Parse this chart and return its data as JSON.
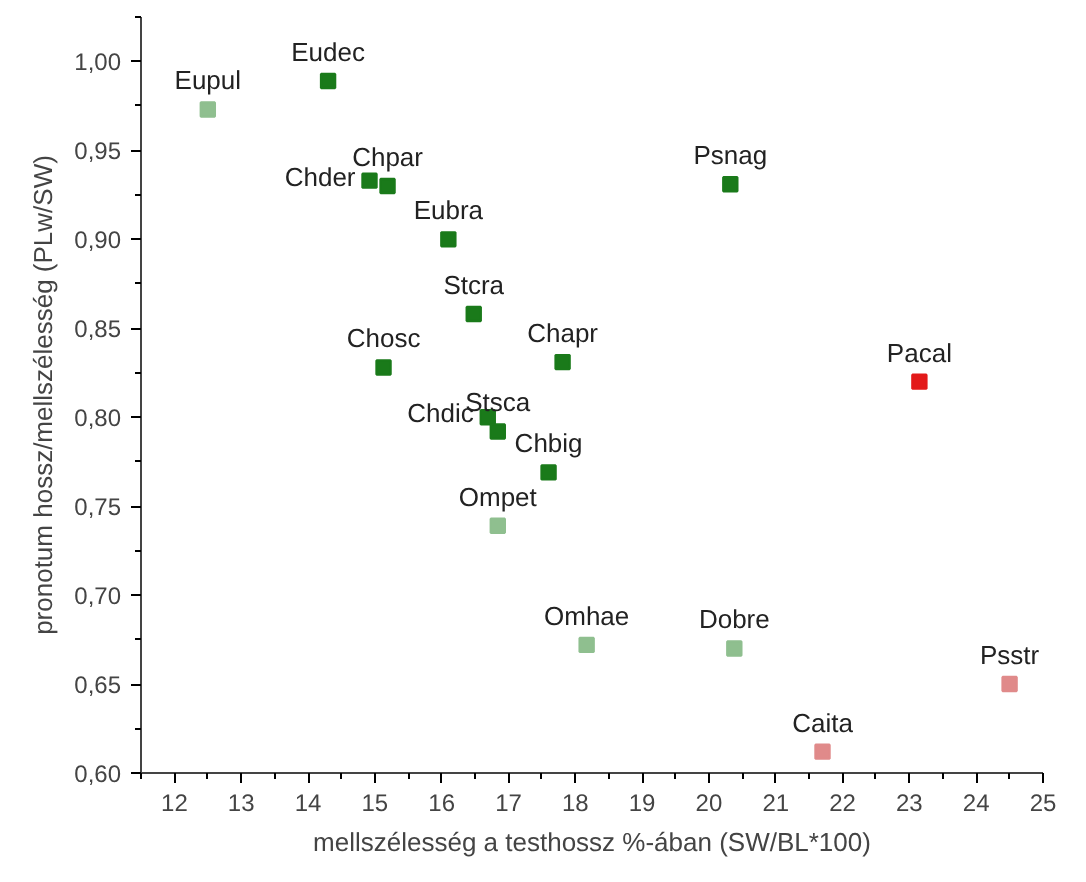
{
  "chart_data": {
    "type": "scatter",
    "xlabel": "mellszélesség a testhossz %-ában (SW/BL*100)",
    "ylabel": "pronotum hossz/mellszélesség (PLw/SW)",
    "xlim": [
      11.5,
      25
    ],
    "ylim": [
      0.6,
      1.025
    ],
    "xticks": [
      12,
      13,
      14,
      15,
      16,
      17,
      18,
      19,
      20,
      21,
      22,
      23,
      24,
      25
    ],
    "yticks": [
      {
        "value": 0.6,
        "label": "0,60"
      },
      {
        "value": 0.65,
        "label": "0,65"
      },
      {
        "value": 0.7,
        "label": "0,70"
      },
      {
        "value": 0.75,
        "label": "0,75"
      },
      {
        "value": 0.8,
        "label": "0,80"
      },
      {
        "value": 0.85,
        "label": "0,85"
      },
      {
        "value": 0.9,
        "label": "0,90"
      },
      {
        "value": 0.95,
        "label": "0,95"
      },
      {
        "value": 1.0,
        "label": "1,00"
      }
    ],
    "grid": false,
    "marker": "square",
    "series": [
      {
        "color": "#1a7a1a",
        "x": [
          14.3,
          14.92,
          15.19,
          16.1,
          16.48,
          15.13,
          17.81,
          16.69,
          16.84,
          17.6,
          20.32
        ],
        "values": [
          0.989,
          0.933,
          0.93,
          0.9,
          0.858,
          0.828,
          0.831,
          0.8,
          0.792,
          0.769,
          0.931
        ]
      },
      {
        "color": "#e31a1a",
        "x": [
          23.15
        ],
        "values": [
          0.82
        ]
      },
      {
        "color": "#8fbf8f",
        "x": [
          12.5,
          16.84,
          18.17,
          20.38
        ],
        "values": [
          0.973,
          0.739,
          0.672,
          0.67
        ]
      },
      {
        "color": "#e08a8a",
        "x": [
          21.7,
          24.5
        ],
        "values": [
          0.612,
          0.65
        ]
      }
    ],
    "annotations": [
      {
        "text": "Eupul",
        "x": 12.5,
        "y": 0.973
      },
      {
        "text": "Eudec",
        "x": 14.3,
        "y": 0.989
      },
      {
        "text": "Chder",
        "x": 14.92,
        "y": 0.933
      },
      {
        "text": "Chpar",
        "x": 15.19,
        "y": 0.93
      },
      {
        "text": "Eubra",
        "x": 16.1,
        "y": 0.9
      },
      {
        "text": "Stcra",
        "x": 16.48,
        "y": 0.858
      },
      {
        "text": "Chosc",
        "x": 15.13,
        "y": 0.828
      },
      {
        "text": "Chapr",
        "x": 17.81,
        "y": 0.831
      },
      {
        "text": "Chdic",
        "x": 16.69,
        "y": 0.8
      },
      {
        "text": "Stsca",
        "x": 16.84,
        "y": 0.792
      },
      {
        "text": "Chbig",
        "x": 17.6,
        "y": 0.769
      },
      {
        "text": "Psnag",
        "x": 20.32,
        "y": 0.931
      },
      {
        "text": "Pacal",
        "x": 23.15,
        "y": 0.82
      },
      {
        "text": "Ompet",
        "x": 16.84,
        "y": 0.739
      },
      {
        "text": "Omhae",
        "x": 18.17,
        "y": 0.672
      },
      {
        "text": "Dobre",
        "x": 20.38,
        "y": 0.67
      },
      {
        "text": "Caita",
        "x": 21.7,
        "y": 0.612
      },
      {
        "text": "Psstr",
        "x": 24.5,
        "y": 0.65
      }
    ]
  }
}
